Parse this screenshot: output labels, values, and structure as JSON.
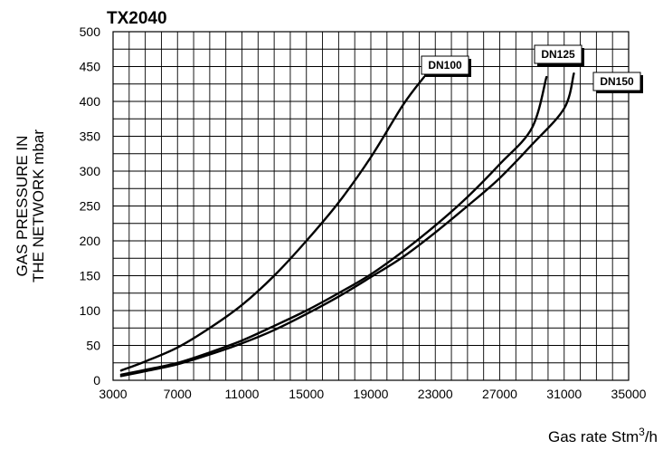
{
  "chart_data": {
    "type": "line",
    "title": "TX2040",
    "xlabel": "Gas rate Stm",
    "xlabel_sup": "3",
    "xlabel_suffix": "/h",
    "ylabel_line1": "GAS PRESSURE IN",
    "ylabel_line2": "THE NETWORK mbar",
    "xlim": [
      3000,
      35000
    ],
    "ylim": [
      0,
      500
    ],
    "x_ticks": [
      "3000",
      "7000",
      "11000",
      "15000",
      "19000",
      "23000",
      "27000",
      "31000",
      "35000"
    ],
    "y_ticks": [
      "0",
      "50",
      "100",
      "150",
      "200",
      "250",
      "300",
      "350",
      "400",
      "450",
      "500"
    ],
    "grid": true,
    "series": [
      {
        "name": "DN100",
        "x": [
          3500,
          5000,
          7000,
          9000,
          11000,
          13000,
          15000,
          17000,
          19000,
          21000,
          22300
        ],
        "y": [
          14,
          27,
          47,
          75,
          108,
          150,
          200,
          255,
          320,
          395,
          435
        ]
      },
      {
        "name": "DN125",
        "x": [
          3500,
          5000,
          7000,
          9000,
          11000,
          13000,
          15000,
          17000,
          19000,
          21000,
          23000,
          25000,
          27000,
          29000,
          29900
        ],
        "y": [
          8,
          15,
          25,
          40,
          57,
          78,
          100,
          125,
          152,
          185,
          222,
          263,
          310,
          362,
          435
        ]
      },
      {
        "name": "DN150",
        "x": [
          3500,
          5000,
          7000,
          9000,
          11000,
          13000,
          15000,
          17000,
          19000,
          21000,
          23000,
          25000,
          27000,
          29000,
          31000,
          31600
        ],
        "y": [
          6,
          13,
          23,
          37,
          53,
          72,
          95,
          120,
          148,
          177,
          212,
          250,
          290,
          338,
          390,
          440
        ]
      }
    ]
  }
}
